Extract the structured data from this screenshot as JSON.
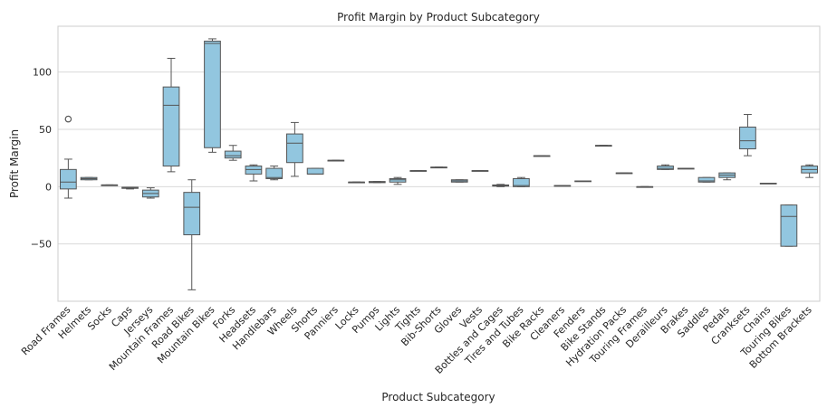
{
  "chart_data": {
    "type": "box",
    "title": "Profit Margin by Product Subcategory",
    "xlabel": "Product Subcategory",
    "ylabel": "Profit Margin",
    "ylim": [
      -100,
      140
    ],
    "yticks": [
      -50,
      0,
      50,
      100
    ],
    "grid": "horizontal",
    "box_color": "#92c6df",
    "line_color": "#555555",
    "categories": [
      "Road Frames",
      "Helmets",
      "Socks",
      "Caps",
      "Jerseys",
      "Mountain Frames",
      "Road Bikes",
      "Mountain Bikes",
      "Forks",
      "Headsets",
      "Handlebars",
      "Wheels",
      "Shorts",
      "Panniers",
      "Locks",
      "Pumps",
      "Lights",
      "Tights",
      "Bib-Shorts",
      "Gloves",
      "Vests",
      "Bottles and Cages",
      "Tires and Tubes",
      "Bike Racks",
      "Cleaners",
      "Fenders",
      "Bike Stands",
      "Hydration Packs",
      "Touring Frames",
      "Derailleurs",
      "Brakes",
      "Saddles",
      "Pedals",
      "Cranksets",
      "Chains",
      "Touring Bikes",
      "Bottom Brackets"
    ],
    "boxes": [
      {
        "whislo": -10,
        "q1": -2,
        "med": 4,
        "q3": 15,
        "whishi": 24,
        "fliers": [
          59,
          59
        ]
      },
      {
        "whislo": 6,
        "q1": 6,
        "med": 7,
        "q3": 8,
        "whishi": 8,
        "fliers": []
      },
      {
        "whislo": 1.5,
        "q1": 1.5,
        "med": 1.5,
        "q3": 1.5,
        "whishi": 1.5,
        "fliers": []
      },
      {
        "whislo": -2,
        "q1": -1.5,
        "med": -1,
        "q3": -0.5,
        "whishi": -0.5,
        "fliers": []
      },
      {
        "whislo": -10,
        "q1": -9,
        "med": -6,
        "q3": -3,
        "whishi": -1,
        "fliers": []
      },
      {
        "whislo": 13,
        "q1": 18,
        "med": 71,
        "q3": 87,
        "whishi": 112,
        "fliers": []
      },
      {
        "whislo": -90,
        "q1": -42,
        "med": -18,
        "q3": -5,
        "whishi": 6,
        "fliers": []
      },
      {
        "whislo": 30,
        "q1": 34,
        "med": 125,
        "q3": 127,
        "whishi": 129,
        "fliers": []
      },
      {
        "whislo": 23,
        "q1": 25,
        "med": 27,
        "q3": 31,
        "whishi": 36,
        "fliers": []
      },
      {
        "whislo": 5,
        "q1": 11,
        "med": 15,
        "q3": 18,
        "whishi": 19,
        "fliers": []
      },
      {
        "whislo": 6,
        "q1": 7,
        "med": 8,
        "q3": 16,
        "whishi": 18,
        "fliers": []
      },
      {
        "whislo": 9,
        "q1": 21,
        "med": 38,
        "q3": 46,
        "whishi": 56,
        "fliers": []
      },
      {
        "whislo": 11,
        "q1": 11,
        "med": 11,
        "q3": 16,
        "whishi": 16,
        "fliers": []
      },
      {
        "whislo": 23,
        "q1": 23,
        "med": 23,
        "q3": 23,
        "whishi": 23,
        "fliers": []
      },
      {
        "whislo": 4,
        "q1": 4,
        "med": 4,
        "q3": 4,
        "whishi": 4,
        "fliers": []
      },
      {
        "whislo": 3.5,
        "q1": 3.5,
        "med": 4,
        "q3": 4.5,
        "whishi": 4.5,
        "fliers": []
      },
      {
        "whislo": 2,
        "q1": 4,
        "med": 6,
        "q3": 7,
        "whishi": 8,
        "fliers": []
      },
      {
        "whislo": 14,
        "q1": 14,
        "med": 14,
        "q3": 14,
        "whishi": 14,
        "fliers": []
      },
      {
        "whislo": 17,
        "q1": 17,
        "med": 17,
        "q3": 17,
        "whishi": 17,
        "fliers": []
      },
      {
        "whislo": 4,
        "q1": 4,
        "med": 5,
        "q3": 6,
        "whishi": 6,
        "fliers": []
      },
      {
        "whislo": 14,
        "q1": 14,
        "med": 14,
        "q3": 14,
        "whishi": 14,
        "fliers": []
      },
      {
        "whislo": 0,
        "q1": 0.5,
        "med": 1,
        "q3": 1.5,
        "whishi": 2,
        "fliers": []
      },
      {
        "whislo": 0,
        "q1": 0,
        "med": 1,
        "q3": 7,
        "whishi": 8,
        "fliers": []
      },
      {
        "whislo": 27,
        "q1": 27,
        "med": 27,
        "q3": 27,
        "whishi": 27,
        "fliers": []
      },
      {
        "whislo": 1,
        "q1": 1,
        "med": 1,
        "q3": 1,
        "whishi": 1,
        "fliers": []
      },
      {
        "whislo": 5,
        "q1": 5,
        "med": 5,
        "q3": 5,
        "whishi": 5,
        "fliers": []
      },
      {
        "whislo": 36,
        "q1": 36,
        "med": 36,
        "q3": 36,
        "whishi": 36,
        "fliers": []
      },
      {
        "whislo": 12,
        "q1": 12,
        "med": 12,
        "q3": 12,
        "whishi": 12,
        "fliers": []
      },
      {
        "whislo": 0,
        "q1": 0,
        "med": 0,
        "q3": 0,
        "whishi": 0,
        "fliers": []
      },
      {
        "whislo": 15,
        "q1": 15,
        "med": 16,
        "q3": 18,
        "whishi": 19,
        "fliers": []
      },
      {
        "whislo": 16,
        "q1": 16,
        "med": 16,
        "q3": 16,
        "whishi": 16,
        "fliers": []
      },
      {
        "whislo": 4,
        "q1": 4,
        "med": 5,
        "q3": 8,
        "whishi": 8,
        "fliers": []
      },
      {
        "whislo": 6,
        "q1": 8,
        "med": 10,
        "q3": 12,
        "whishi": 12,
        "fliers": []
      },
      {
        "whislo": 27,
        "q1": 33,
        "med": 40,
        "q3": 52,
        "whishi": 63,
        "fliers": []
      },
      {
        "whislo": 3,
        "q1": 3,
        "med": 3,
        "q3": 3,
        "whishi": 3,
        "fliers": []
      },
      {
        "whislo": -52,
        "q1": -52,
        "med": -26,
        "q3": -16,
        "whishi": -16,
        "fliers": []
      },
      {
        "whislo": 8,
        "q1": 12,
        "med": 15,
        "q3": 18,
        "whishi": 19,
        "fliers": []
      }
    ]
  }
}
